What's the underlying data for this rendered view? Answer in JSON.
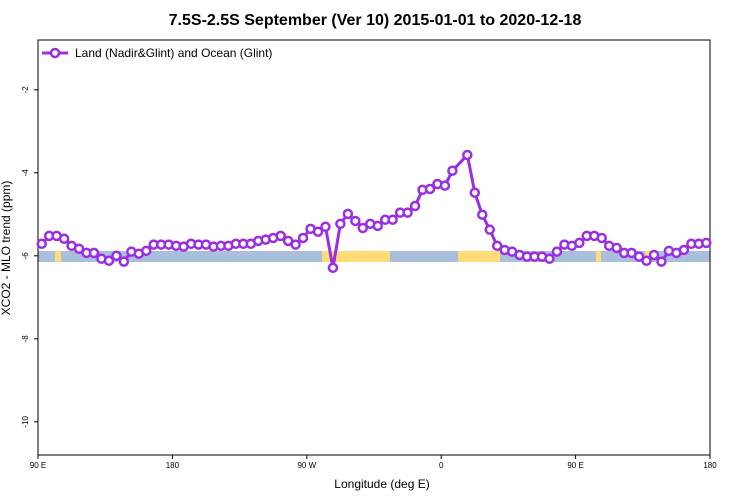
{
  "chart_data": {
    "type": "line",
    "title": "7.5S-2.5S September (Ver 10)   2015-01-01 to 2020-12-18",
    "xlabel": "Longitude (deg E)",
    "ylabel": "XCO2 - MLO trend (ppm)",
    "xlim": [
      90,
      540
    ],
    "ylim": [
      -10.8,
      -0.8
    ],
    "xticks": [
      {
        "value": 90,
        "label": "90 E"
      },
      180,
      {
        "value": 270,
        "label": "90 W"
      },
      {
        "value": 360,
        "label": "0"
      },
      {
        "value": 450,
        "label": "90 E"
      },
      {
        "value": 540,
        "label": "180"
      }
    ],
    "yticks": [
      -10,
      -8,
      -6,
      -4,
      -2
    ],
    "legend": "upper left",
    "x": [
      92.5,
      97.5,
      102.5,
      107.5,
      112.5,
      117.5,
      122.5,
      127.5,
      132.5,
      137.5,
      142.5,
      147.5,
      152.5,
      157.5,
      162.5,
      167.5,
      172.5,
      177.5,
      182.5,
      187.5,
      192.5,
      197.5,
      202.5,
      207.5,
      212.5,
      217.5,
      222.5,
      227.5,
      232.5,
      237.5,
      242.5,
      247.5,
      252.5,
      257.5,
      262.5,
      267.5,
      272.5,
      277.5,
      282.5,
      287.5,
      292.5,
      297.5,
      302.5,
      307.5,
      312.5,
      317.5,
      322.5,
      327.5,
      332.5,
      337.5,
      342.5,
      347.5,
      352.5,
      357.5,
      362.5,
      367.5,
      377.5,
      382.5,
      387.5,
      392.5,
      397.5,
      402.5,
      407.5,
      412.5,
      417.5,
      422.5,
      427.5,
      432.5,
      437.5,
      442.5,
      447.5,
      452.5,
      457.5,
      462.5,
      467.5,
      472.5,
      477.5,
      482.5,
      487.5,
      492.5,
      497.5,
      502.5,
      507.5,
      512.5,
      517.5,
      522.5,
      527.5,
      532.5,
      537.5
    ],
    "series": [
      {
        "name": "Land (Nadir&Glint) and Ocean (Glint)",
        "color": "#9b2ee0",
        "values": [
          -5.71,
          -5.52,
          -5.52,
          -5.59,
          -5.76,
          -5.83,
          -5.93,
          -5.93,
          -6.07,
          -6.12,
          -6.0,
          -6.14,
          -5.9,
          -5.95,
          -5.88,
          -5.73,
          -5.73,
          -5.73,
          -5.76,
          -5.78,
          -5.71,
          -5.73,
          -5.73,
          -5.78,
          -5.76,
          -5.76,
          -5.71,
          -5.71,
          -5.71,
          -5.64,
          -5.61,
          -5.57,
          -5.52,
          -5.64,
          -5.73,
          -5.57,
          -5.35,
          -5.42,
          -5.3,
          -6.29,
          -5.23,
          -4.99,
          -5.16,
          -5.33,
          -5.23,
          -5.28,
          -5.13,
          -5.13,
          -4.96,
          -4.96,
          -4.8,
          -4.41,
          -4.39,
          -4.27,
          -4.31,
          -3.95,
          -3.57,
          -4.48,
          -5.01,
          -5.37,
          -5.76,
          -5.86,
          -5.9,
          -5.98,
          -6.02,
          -6.02,
          -6.02,
          -6.07,
          -5.9,
          -5.73,
          -5.76,
          -5.69,
          -5.52,
          -5.52,
          -5.57,
          -5.76,
          -5.81,
          -5.93,
          -5.93,
          -6.02,
          -6.12,
          -5.98,
          -6.14,
          -5.88,
          -5.93,
          -5.86,
          -5.71,
          -5.71,
          -5.69
        ]
      }
    ]
  }
}
